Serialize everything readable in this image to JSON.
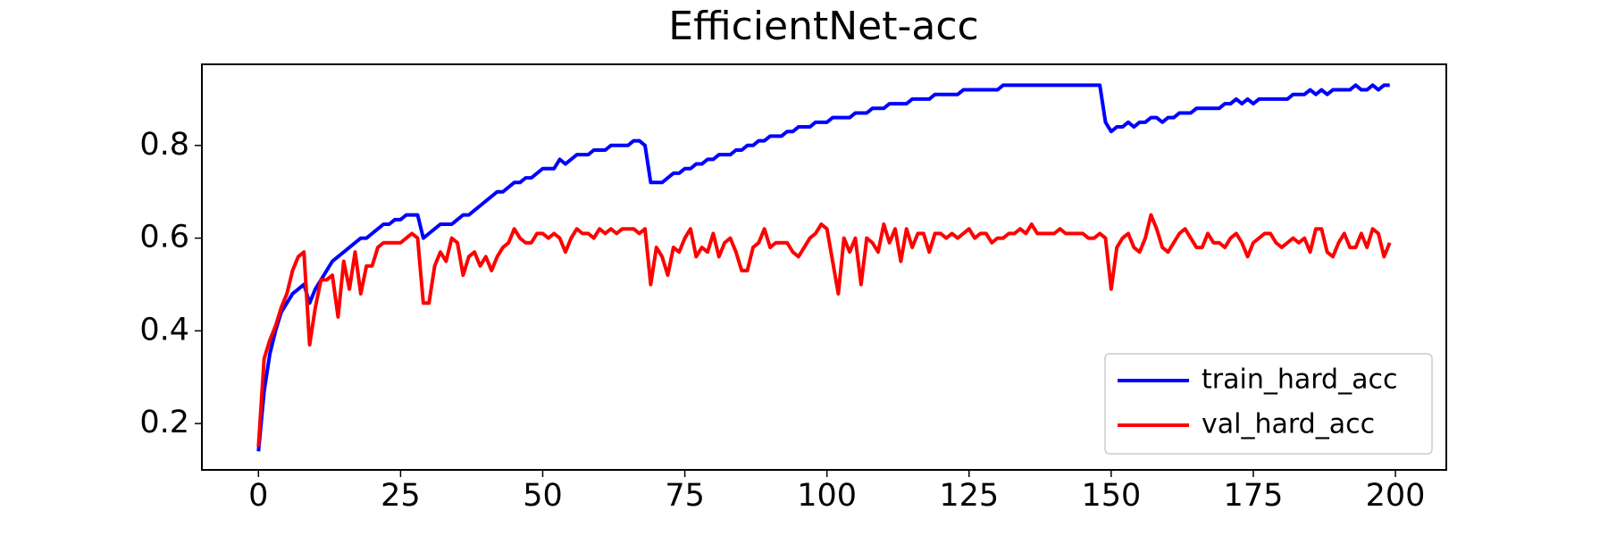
{
  "chart_data": {
    "type": "line",
    "title": "EfficientNet-acc",
    "x": [
      0,
      1,
      2,
      3,
      4,
      5,
      6,
      7,
      8,
      9,
      10,
      11,
      12,
      13,
      14,
      15,
      16,
      17,
      18,
      19,
      20,
      21,
      22,
      23,
      24,
      25,
      26,
      27,
      28,
      29,
      30,
      31,
      32,
      33,
      34,
      35,
      36,
      37,
      38,
      39,
      40,
      41,
      42,
      43,
      44,
      45,
      46,
      47,
      48,
      49,
      50,
      51,
      52,
      53,
      54,
      55,
      56,
      57,
      58,
      59,
      60,
      61,
      62,
      63,
      64,
      65,
      66,
      67,
      68,
      69,
      70,
      71,
      72,
      73,
      74,
      75,
      76,
      77,
      78,
      79,
      80,
      81,
      82,
      83,
      84,
      85,
      86,
      87,
      88,
      89,
      90,
      91,
      92,
      93,
      94,
      95,
      96,
      97,
      98,
      99,
      100,
      101,
      102,
      103,
      104,
      105,
      106,
      107,
      108,
      109,
      110,
      111,
      112,
      113,
      114,
      115,
      116,
      117,
      118,
      119,
      120,
      121,
      122,
      123,
      124,
      125,
      126,
      127,
      128,
      129,
      130,
      131,
      132,
      133,
      134,
      135,
      136,
      137,
      138,
      139,
      140,
      141,
      142,
      143,
      144,
      145,
      146,
      147,
      148,
      149,
      150,
      151,
      152,
      153,
      154,
      155,
      156,
      157,
      158,
      159,
      160,
      161,
      162,
      163,
      164,
      165,
      166,
      167,
      168,
      169,
      170,
      171,
      172,
      173,
      174,
      175,
      176,
      177,
      178,
      179,
      180,
      181,
      182,
      183,
      184,
      185,
      186,
      187,
      188,
      189,
      190,
      191,
      192,
      193,
      194,
      195,
      196,
      197,
      198,
      199
    ],
    "series": [
      {
        "name": "train_hard_acc",
        "color": "#0000ff",
        "values": [
          0.14,
          0.27,
          0.35,
          0.4,
          0.44,
          0.46,
          0.48,
          0.49,
          0.5,
          0.46,
          0.49,
          0.51,
          0.53,
          0.55,
          0.56,
          0.57,
          0.58,
          0.59,
          0.6,
          0.6,
          0.61,
          0.62,
          0.63,
          0.63,
          0.64,
          0.64,
          0.65,
          0.65,
          0.65,
          0.6,
          0.61,
          0.62,
          0.63,
          0.63,
          0.63,
          0.64,
          0.65,
          0.65,
          0.66,
          0.67,
          0.68,
          0.69,
          0.7,
          0.7,
          0.71,
          0.72,
          0.72,
          0.73,
          0.73,
          0.74,
          0.75,
          0.75,
          0.75,
          0.77,
          0.76,
          0.77,
          0.78,
          0.78,
          0.78,
          0.79,
          0.79,
          0.79,
          0.8,
          0.8,
          0.8,
          0.8,
          0.81,
          0.81,
          0.8,
          0.72,
          0.72,
          0.72,
          0.73,
          0.74,
          0.74,
          0.75,
          0.75,
          0.76,
          0.76,
          0.77,
          0.77,
          0.78,
          0.78,
          0.78,
          0.79,
          0.79,
          0.8,
          0.8,
          0.81,
          0.81,
          0.82,
          0.82,
          0.82,
          0.83,
          0.83,
          0.84,
          0.84,
          0.84,
          0.85,
          0.85,
          0.85,
          0.86,
          0.86,
          0.86,
          0.86,
          0.87,
          0.87,
          0.87,
          0.88,
          0.88,
          0.88,
          0.89,
          0.89,
          0.89,
          0.89,
          0.9,
          0.9,
          0.9,
          0.9,
          0.91,
          0.91,
          0.91,
          0.91,
          0.91,
          0.92,
          0.92,
          0.92,
          0.92,
          0.92,
          0.92,
          0.92,
          0.93,
          0.93,
          0.93,
          0.93,
          0.93,
          0.93,
          0.93,
          0.93,
          0.93,
          0.93,
          0.93,
          0.93,
          0.93,
          0.93,
          0.93,
          0.93,
          0.93,
          0.93,
          0.85,
          0.83,
          0.84,
          0.84,
          0.85,
          0.84,
          0.85,
          0.85,
          0.86,
          0.86,
          0.85,
          0.86,
          0.86,
          0.87,
          0.87,
          0.87,
          0.88,
          0.88,
          0.88,
          0.88,
          0.88,
          0.89,
          0.89,
          0.9,
          0.89,
          0.9,
          0.89,
          0.9,
          0.9,
          0.9,
          0.9,
          0.9,
          0.9,
          0.91,
          0.91,
          0.91,
          0.92,
          0.91,
          0.92,
          0.91,
          0.92,
          0.92,
          0.92,
          0.92,
          0.93,
          0.92,
          0.92,
          0.93,
          0.92,
          0.93,
          0.93
        ]
      },
      {
        "name": "val_hard_acc",
        "color": "#ff0000",
        "values": [
          0.15,
          0.34,
          0.38,
          0.41,
          0.45,
          0.48,
          0.53,
          0.56,
          0.57,
          0.37,
          0.45,
          0.51,
          0.51,
          0.52,
          0.43,
          0.55,
          0.49,
          0.57,
          0.48,
          0.54,
          0.54,
          0.58,
          0.59,
          0.59,
          0.59,
          0.59,
          0.6,
          0.61,
          0.6,
          0.46,
          0.46,
          0.54,
          0.57,
          0.55,
          0.6,
          0.59,
          0.52,
          0.56,
          0.57,
          0.54,
          0.56,
          0.53,
          0.56,
          0.58,
          0.59,
          0.62,
          0.6,
          0.59,
          0.59,
          0.61,
          0.61,
          0.6,
          0.61,
          0.6,
          0.57,
          0.6,
          0.62,
          0.61,
          0.61,
          0.6,
          0.62,
          0.61,
          0.62,
          0.61,
          0.62,
          0.62,
          0.62,
          0.61,
          0.62,
          0.5,
          0.58,
          0.56,
          0.52,
          0.58,
          0.57,
          0.6,
          0.62,
          0.56,
          0.58,
          0.57,
          0.61,
          0.56,
          0.59,
          0.6,
          0.57,
          0.53,
          0.53,
          0.58,
          0.59,
          0.62,
          0.58,
          0.59,
          0.59,
          0.59,
          0.57,
          0.56,
          0.58,
          0.6,
          0.61,
          0.63,
          0.62,
          0.55,
          0.48,
          0.6,
          0.57,
          0.6,
          0.5,
          0.6,
          0.59,
          0.57,
          0.63,
          0.59,
          0.62,
          0.55,
          0.62,
          0.58,
          0.61,
          0.61,
          0.57,
          0.61,
          0.61,
          0.6,
          0.61,
          0.6,
          0.61,
          0.62,
          0.6,
          0.61,
          0.61,
          0.59,
          0.6,
          0.6,
          0.61,
          0.61,
          0.62,
          0.61,
          0.63,
          0.61,
          0.61,
          0.61,
          0.61,
          0.62,
          0.61,
          0.61,
          0.61,
          0.61,
          0.6,
          0.6,
          0.61,
          0.6,
          0.49,
          0.58,
          0.6,
          0.61,
          0.58,
          0.57,
          0.6,
          0.65,
          0.62,
          0.58,
          0.57,
          0.59,
          0.61,
          0.62,
          0.6,
          0.58,
          0.58,
          0.61,
          0.59,
          0.59,
          0.58,
          0.6,
          0.61,
          0.59,
          0.56,
          0.59,
          0.6,
          0.61,
          0.61,
          0.59,
          0.58,
          0.59,
          0.6,
          0.59,
          0.6,
          0.57,
          0.62,
          0.62,
          0.57,
          0.56,
          0.59,
          0.61,
          0.58,
          0.58,
          0.61,
          0.58,
          0.62,
          0.61,
          0.56,
          0.59
        ]
      }
    ],
    "xlim": [
      -9.95,
      208.95
    ],
    "xticks": [
      0,
      25,
      50,
      75,
      100,
      125,
      150,
      175,
      200
    ],
    "ylim": [
      0.1,
      0.975
    ],
    "yticks": [
      0.2,
      0.4,
      0.6,
      0.8
    ],
    "legend": "lower right"
  }
}
